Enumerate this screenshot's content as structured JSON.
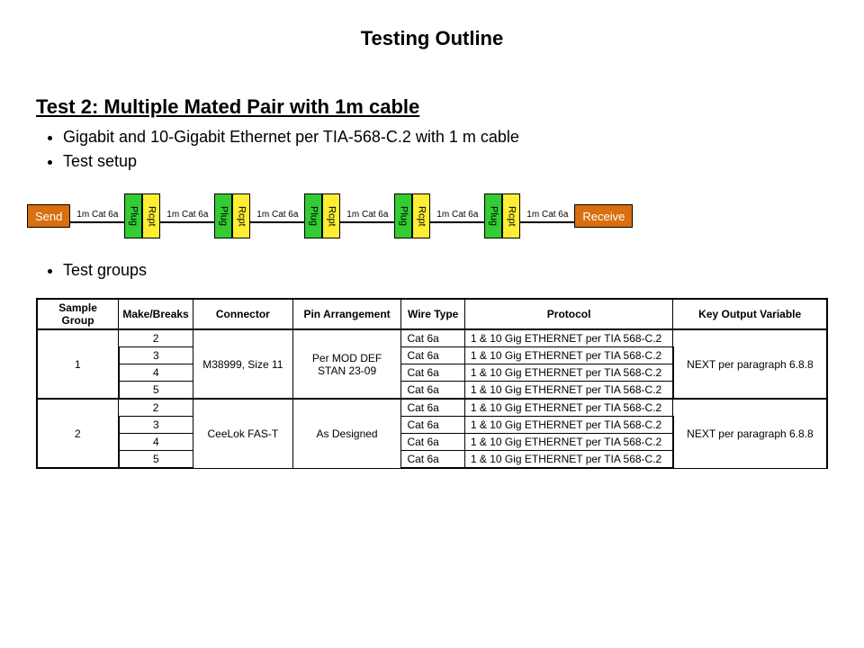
{
  "title": "Testing Outline",
  "subtitle": "Test 2: Multiple Mated Pair with 1m cable",
  "bullets": [
    "Gigabit and 10-Gigabit Ethernet per TIA-568-C.2 with 1 m cable",
    "Test setup"
  ],
  "bullets2": [
    "Test groups"
  ],
  "diagram": {
    "send": "Send",
    "receive": "Receive",
    "cable_label": "1m Cat 6a",
    "plug": "Plug",
    "rcpt": "Rcpt",
    "num_pairs": 5,
    "colors": {
      "end_box_bg": "#d96f0e",
      "end_box_fg": "#ffffff",
      "plug_bg": "#33cc33",
      "rcpt_bg": "#ffee33",
      "line": "#000000"
    }
  },
  "table": {
    "headers": [
      "Sample Group",
      "Make/Breaks",
      "Connector",
      "Pin Arrangement",
      "Wire Type",
      "Protocol",
      "Key Output Variable"
    ],
    "groups": [
      {
        "sample_group": "1",
        "connector": "M38999, Size 11",
        "pin_arrangement": "Per MOD DEF STAN 23-09",
        "key_output": "NEXT per paragraph 6.8.8",
        "rows": [
          {
            "mb": "2",
            "wire": "Cat 6a",
            "protocol": "1 & 10 Gig ETHERNET per TIA 568-C.2"
          },
          {
            "mb": "3",
            "wire": "Cat 6a",
            "protocol": "1 & 10 Gig ETHERNET per TIA 568-C.2"
          },
          {
            "mb": "4",
            "wire": "Cat 6a",
            "protocol": "1 & 10 Gig ETHERNET per TIA 568-C.2"
          },
          {
            "mb": "5",
            "wire": "Cat 6a",
            "protocol": "1 & 10 Gig ETHERNET per TIA 568-C.2"
          }
        ]
      },
      {
        "sample_group": "2",
        "connector": "CeeLok FAS-T",
        "pin_arrangement": "As Designed",
        "key_output": "NEXT per paragraph 6.8.8",
        "rows": [
          {
            "mb": "2",
            "wire": "Cat 6a",
            "protocol": "1 & 10 Gig ETHERNET per TIA 568-C.2"
          },
          {
            "mb": "3",
            "wire": "Cat 6a",
            "protocol": "1 & 10 Gig ETHERNET per TIA 568-C.2"
          },
          {
            "mb": "4",
            "wire": "Cat 6a",
            "protocol": "1 & 10 Gig ETHERNET per TIA 568-C.2"
          },
          {
            "mb": "5",
            "wire": "Cat 6a",
            "protocol": "1 & 10 Gig ETHERNET per TIA 568-C.2"
          }
        ]
      }
    ],
    "col_widths": [
      "90px",
      "80px",
      "110px",
      "120px",
      "70px",
      "230px",
      "170px"
    ]
  }
}
